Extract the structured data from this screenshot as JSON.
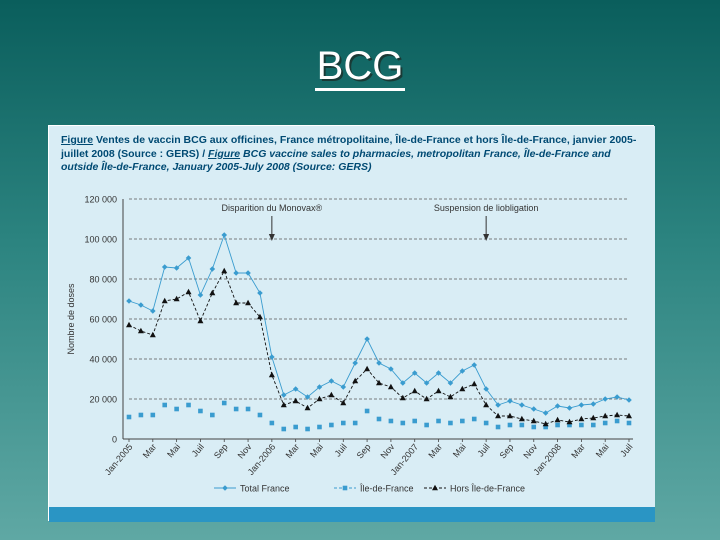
{
  "slide": {
    "title": "BCG"
  },
  "caption": {
    "fig_label_fr": "Figure",
    "text_fr": " Ventes de vaccin BCG aux officines, France métropolitaine, Île-de-France et hors Île-de-France, janvier 2005-juillet 2008 (Source : GERS) / ",
    "fig_label_en": "Figure",
    "text_en": " BCG vaccine sales to pharmacies, metropolitan France, Île-de-France and outside Île-de-France, January 2005-July 2008 (Source: GERS)"
  },
  "chart_data": {
    "type": "line",
    "ylabel": "Nombre de doses",
    "xlabel": "",
    "ylim": [
      0,
      120000
    ],
    "yticks": [
      0,
      20000,
      40000,
      60000,
      80000,
      100000,
      120000
    ],
    "ytick_labels": [
      "0",
      "20 000",
      "40 000",
      "60 000",
      "80 000",
      "100 000",
      "120 000"
    ],
    "grid": "horizontal dashed",
    "legend_position": "bottom",
    "x_tick_labels": [
      {
        "index": 0,
        "label": "Jan-2005"
      },
      {
        "index": 2,
        "label": "Mar"
      },
      {
        "index": 4,
        "label": "Mai"
      },
      {
        "index": 6,
        "label": "Juil"
      },
      {
        "index": 8,
        "label": "Sep"
      },
      {
        "index": 10,
        "label": "Nov"
      },
      {
        "index": 12,
        "label": "Jan-2006"
      },
      {
        "index": 14,
        "label": "Mar"
      },
      {
        "index": 16,
        "label": "Mai"
      },
      {
        "index": 18,
        "label": "Juil"
      },
      {
        "index": 20,
        "label": "Sep"
      },
      {
        "index": 22,
        "label": "Nov"
      },
      {
        "index": 24,
        "label": "Jan-2007"
      },
      {
        "index": 26,
        "label": "Mar"
      },
      {
        "index": 28,
        "label": "Mai"
      },
      {
        "index": 30,
        "label": "Juil"
      },
      {
        "index": 32,
        "label": "Sep"
      },
      {
        "index": 34,
        "label": "Nov"
      },
      {
        "index": 36,
        "label": "Jan-2008"
      },
      {
        "index": 38,
        "label": "Mar"
      },
      {
        "index": 40,
        "label": "Mai"
      },
      {
        "index": 42,
        "label": "Juil"
      }
    ],
    "series": [
      {
        "name": "Total France",
        "color": "#3a9ccf",
        "marker": "diamond",
        "values": [
          69000,
          67000,
          64000,
          86000,
          85500,
          90500,
          72000,
          85000,
          102000,
          83000,
          83000,
          73000,
          41000,
          22000,
          25000,
          21000,
          26000,
          29000,
          26000,
          38000,
          50000,
          38000,
          35000,
          28000,
          33000,
          28000,
          33000,
          28000,
          34000,
          37000,
          25000,
          17000,
          19000,
          17000,
          15000,
          13000,
          16500,
          15500,
          17000,
          17500,
          20000,
          21000,
          19500
        ]
      },
      {
        "name": "Île-de-France",
        "color": "#3a9ccf",
        "marker": "square",
        "values": [
          11000,
          12000,
          12000,
          17000,
          15000,
          17000,
          14000,
          12000,
          18000,
          15000,
          15000,
          12000,
          8000,
          5000,
          6000,
          5000,
          6000,
          7000,
          8000,
          8000,
          14000,
          10000,
          9000,
          8000,
          9000,
          7000,
          9000,
          8000,
          9000,
          10000,
          8000,
          6000,
          7000,
          7000,
          6000,
          6000,
          7000,
          7000,
          7000,
          7000,
          8000,
          9000,
          8000
        ]
      },
      {
        "name": "Hors Île-de-France",
        "color": "#111111",
        "marker": "triangle",
        "values": [
          57000,
          54000,
          52000,
          69000,
          70000,
          73500,
          59000,
          73000,
          84000,
          68000,
          68000,
          61000,
          32000,
          17000,
          19000,
          15500,
          20000,
          22000,
          18000,
          29000,
          35000,
          28000,
          26000,
          20500,
          24000,
          20000,
          24000,
          21000,
          25000,
          27500,
          17000,
          11500,
          11500,
          10000,
          9000,
          7500,
          9500,
          8500,
          10000,
          10500,
          11500,
          12000,
          11500
        ]
      }
    ],
    "annotations": [
      {
        "text": "Disparition du Monovax®",
        "index": 12
      },
      {
        "text": "Suspension de liobligation",
        "index": 30
      }
    ]
  }
}
